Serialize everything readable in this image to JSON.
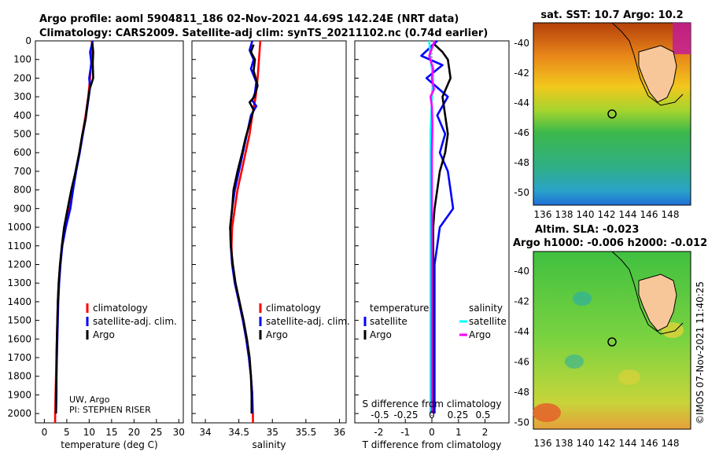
{
  "header": {
    "title_line1": "Argo profile: aoml 5904811_186 02-Nov-2021 44.69S 142.24E (NRT data)",
    "title_line2": "Climatology: CARS2009. Satellite-adj clim: synTS_20211102.nc (0.74d earlier)"
  },
  "depth_axis": {
    "ticks": [
      0,
      100,
      200,
      300,
      400,
      500,
      600,
      700,
      800,
      900,
      1000,
      1100,
      1200,
      1300,
      1400,
      1500,
      1600,
      1700,
      1800,
      1900,
      2000
    ],
    "ylim": [
      0,
      2050
    ]
  },
  "colors": {
    "climatology": "#ff0000",
    "satellite": "#0000ff",
    "argo": "#000000",
    "sat_salinity": "#00ffff",
    "argo_salinity": "#ff00ff"
  },
  "credit": {
    "line1": "UW, Argo",
    "line2": "PI: STEPHEN RISER"
  },
  "legend_profiles": {
    "climatology": "climatology",
    "satellite": "satellite-adj. clim.",
    "argo": "Argo"
  },
  "legend_diff": {
    "temperature_heading": "temperature",
    "salinity_heading": "salinity",
    "satellite": "satellite",
    "argo": "Argo"
  },
  "diff_top_axis_label": "S difference from climatology",
  "map_sst": {
    "title": "sat. SST: 10.7 Argo: 10.2",
    "lat_ticks": [
      "-40",
      "-42",
      "-44",
      "-46",
      "-48",
      "-50"
    ],
    "lon_ticks": [
      "136",
      "138",
      "140",
      "142",
      "144",
      "146",
      "148"
    ]
  },
  "map_sla": {
    "title_line1": "Altim. SLA: -0.023",
    "title_line2": "Argo h1000: -0.006 h2000: -0.012",
    "lat_ticks": [
      "-40",
      "-42",
      "-44",
      "-46",
      "-48",
      "-50"
    ]
  },
  "copyright": "©IMOS 07-Nov-2021 11:40:25",
  "chart_data": [
    {
      "type": "line",
      "xlabel": "temperature (deg C)",
      "ylabel": "",
      "xlim": [
        -2,
        31
      ],
      "ylim": [
        0,
        2050
      ],
      "x_ticks": [
        0,
        5,
        10,
        15,
        20,
        25,
        30
      ],
      "series": [
        {
          "name": "climatology",
          "color": "#ff0000",
          "points": [
            [
              10.6,
              0
            ],
            [
              10.5,
              100
            ],
            [
              10.2,
              200
            ],
            [
              9.8,
              300
            ],
            [
              9.2,
              400
            ],
            [
              8.5,
              500
            ],
            [
              7.8,
              600
            ],
            [
              7.0,
              700
            ],
            [
              6.2,
              800
            ],
            [
              5.4,
              900
            ],
            [
              4.6,
              1000
            ],
            [
              4.0,
              1100
            ],
            [
              3.5,
              1200
            ],
            [
              3.2,
              1300
            ],
            [
              3.0,
              1400
            ],
            [
              2.9,
              1500
            ],
            [
              2.8,
              1600
            ],
            [
              2.7,
              1700
            ],
            [
              2.6,
              1800
            ],
            [
              2.5,
              1900
            ],
            [
              2.4,
              2000
            ],
            [
              2.4,
              2050
            ]
          ]
        },
        {
          "name": "satellite-adj. clim.",
          "color": "#0000ff",
          "points": [
            [
              10.8,
              0
            ],
            [
              10.2,
              60
            ],
            [
              10.5,
              120
            ],
            [
              10.0,
              200
            ],
            [
              10.2,
              250
            ],
            [
              9.8,
              320
            ],
            [
              9.2,
              420
            ],
            [
              8.6,
              500
            ],
            [
              7.9,
              600
            ],
            [
              7.1,
              700
            ],
            [
              6.4,
              800
            ],
            [
              5.8,
              900
            ],
            [
              4.8,
              1000
            ],
            [
              4.0,
              1100
            ],
            [
              3.6,
              1200
            ],
            [
              3.3,
              1300
            ],
            [
              3.1,
              1400
            ],
            [
              3.0,
              1500
            ],
            [
              2.9,
              1600
            ],
            [
              2.8,
              1700
            ],
            [
              2.7,
              1800
            ],
            [
              2.7,
              1900
            ],
            [
              2.6,
              2000
            ]
          ]
        },
        {
          "name": "Argo",
          "color": "#000000",
          "points": [
            [
              10.7,
              10
            ],
            [
              10.9,
              60
            ],
            [
              10.8,
              120
            ],
            [
              10.9,
              200
            ],
            [
              10.1,
              260
            ],
            [
              9.6,
              340
            ],
            [
              9.2,
              420
            ],
            [
              8.5,
              500
            ],
            [
              7.8,
              600
            ],
            [
              6.8,
              720
            ],
            [
              6.0,
              800
            ],
            [
              5.2,
              900
            ],
            [
              4.4,
              1000
            ],
            [
              3.9,
              1100
            ],
            [
              3.5,
              1200
            ],
            [
              3.2,
              1300
            ],
            [
              3.0,
              1400
            ],
            [
              2.9,
              1500
            ],
            [
              2.8,
              1600
            ],
            [
              2.7,
              1700
            ],
            [
              2.7,
              1800
            ],
            [
              2.6,
              1900
            ],
            [
              2.6,
              2000
            ]
          ]
        }
      ]
    },
    {
      "type": "line",
      "xlabel": "salinity",
      "ylabel": "",
      "xlim": [
        33.8,
        36.1
      ],
      "ylim": [
        0,
        2050
      ],
      "x_ticks": [
        34,
        34.5,
        35,
        35.5,
        36
      ],
      "x_tick_labels": [
        "34",
        "34.5",
        "35",
        "35.5",
        "36"
      ],
      "series": [
        {
          "name": "climatology",
          "color": "#ff0000",
          "points": [
            [
              34.82,
              0
            ],
            [
              34.8,
              100
            ],
            [
              34.78,
              200
            ],
            [
              34.75,
              300
            ],
            [
              34.7,
              400
            ],
            [
              34.66,
              500
            ],
            [
              34.6,
              600
            ],
            [
              34.54,
              700
            ],
            [
              34.48,
              800
            ],
            [
              34.44,
              900
            ],
            [
              34.4,
              1000
            ],
            [
              34.39,
              1100
            ],
            [
              34.4,
              1200
            ],
            [
              34.44,
              1300
            ],
            [
              34.5,
              1400
            ],
            [
              34.56,
              1500
            ],
            [
              34.61,
              1600
            ],
            [
              34.65,
              1700
            ],
            [
              34.68,
              1800
            ],
            [
              34.7,
              1900
            ],
            [
              34.71,
              2000
            ],
            [
              34.71,
              2050
            ]
          ]
        },
        {
          "name": "satellite-adj. clim.",
          "color": "#0000ff",
          "points": [
            [
              34.7,
              0
            ],
            [
              34.66,
              50
            ],
            [
              34.72,
              100
            ],
            [
              34.68,
              150
            ],
            [
              34.76,
              220
            ],
            [
              34.74,
              280
            ],
            [
              34.7,
              320
            ],
            [
              34.76,
              350
            ],
            [
              34.68,
              400
            ],
            [
              34.62,
              500
            ],
            [
              34.56,
              600
            ],
            [
              34.5,
              700
            ],
            [
              34.44,
              800
            ],
            [
              34.4,
              900
            ],
            [
              34.37,
              1000
            ],
            [
              34.38,
              1100
            ],
            [
              34.4,
              1200
            ],
            [
              34.44,
              1300
            ],
            [
              34.5,
              1400
            ],
            [
              34.56,
              1500
            ],
            [
              34.61,
              1600
            ],
            [
              34.65,
              1700
            ],
            [
              34.68,
              1800
            ],
            [
              34.7,
              1900
            ],
            [
              34.7,
              2000
            ]
          ]
        },
        {
          "name": "Argo",
          "color": "#000000",
          "points": [
            [
              34.72,
              20
            ],
            [
              34.68,
              60
            ],
            [
              34.74,
              100
            ],
            [
              34.72,
              160
            ],
            [
              34.78,
              240
            ],
            [
              34.73,
              300
            ],
            [
              34.66,
              330
            ],
            [
              34.72,
              370
            ],
            [
              34.68,
              420
            ],
            [
              34.6,
              520
            ],
            [
              34.55,
              600
            ],
            [
              34.48,
              700
            ],
            [
              34.42,
              800
            ],
            [
              34.4,
              900
            ],
            [
              34.37,
              1000
            ],
            [
              34.38,
              1100
            ],
            [
              34.41,
              1200
            ],
            [
              34.45,
              1300
            ],
            [
              34.51,
              1400
            ],
            [
              34.57,
              1500
            ],
            [
              34.62,
              1600
            ],
            [
              34.66,
              1700
            ],
            [
              34.68,
              1800
            ],
            [
              34.69,
              1900
            ],
            [
              34.69,
              2000
            ]
          ]
        }
      ]
    },
    {
      "type": "line",
      "xlabel": "T difference from climatology",
      "ylabel": "",
      "xlim": [
        -2.9,
        2.9
      ],
      "ylim": [
        0,
        2050
      ],
      "x_ticks": [
        -2,
        -1,
        0,
        1,
        2
      ],
      "top_axis_ticks": [
        "-0.5",
        "-0.25",
        "0",
        "0.25",
        "0.5"
      ],
      "series": [
        {
          "name": "temperature satellite",
          "color": "#0000ff",
          "points": [
            [
              0.2,
              0
            ],
            [
              -0.4,
              80
            ],
            [
              0.4,
              130
            ],
            [
              -0.2,
              200
            ],
            [
              0.6,
              300
            ],
            [
              0.2,
              400
            ],
            [
              0.5,
              500
            ],
            [
              0.3,
              600
            ],
            [
              0.6,
              700
            ],
            [
              0.7,
              800
            ],
            [
              0.8,
              900
            ],
            [
              0.3,
              1000
            ],
            [
              0.2,
              1100
            ],
            [
              0.1,
              1200
            ],
            [
              0.1,
              1300
            ],
            [
              0.1,
              1400
            ],
            [
              0.1,
              1500
            ],
            [
              0.1,
              1600
            ],
            [
              0.1,
              1700
            ],
            [
              0.1,
              1800
            ],
            [
              0.1,
              1900
            ],
            [
              0.1,
              2000
            ]
          ]
        },
        {
          "name": "temperature Argo",
          "color": "#000000",
          "points": [
            [
              0.1,
              20
            ],
            [
              0.4,
              60
            ],
            [
              0.6,
              100
            ],
            [
              0.7,
              200
            ],
            [
              0.4,
              300
            ],
            [
              0.5,
              400
            ],
            [
              0.6,
              500
            ],
            [
              0.5,
              600
            ],
            [
              0.3,
              700
            ],
            [
              0.2,
              800
            ],
            [
              0.1,
              900
            ],
            [
              0.05,
              1000
            ],
            [
              0.05,
              1100
            ],
            [
              0.05,
              1200
            ],
            [
              0.05,
              1300
            ],
            [
              0.05,
              1400
            ],
            [
              0.05,
              1500
            ],
            [
              0.05,
              1600
            ],
            [
              0.05,
              1700
            ],
            [
              0.05,
              1800
            ],
            [
              0.05,
              1900
            ],
            [
              0.05,
              2000
            ]
          ]
        },
        {
          "name": "salinity satellite",
          "color": "#00ffff",
          "points": [
            [
              -0.1,
              0
            ],
            [
              -0.05,
              100
            ],
            [
              0.05,
              200
            ],
            [
              0.0,
              300
            ],
            [
              -0.05,
              500
            ],
            [
              -0.05,
              800
            ],
            [
              -0.05,
              1000
            ],
            [
              -0.05,
              1200
            ],
            [
              -0.05,
              1400
            ],
            [
              -0.05,
              1600
            ],
            [
              -0.05,
              1800
            ],
            [
              -0.05,
              2000
            ]
          ]
        },
        {
          "name": "salinity Argo",
          "color": "#ff00ff",
          "points": [
            [
              0.1,
              0
            ],
            [
              -0.1,
              80
            ],
            [
              0.05,
              150
            ],
            [
              0.0,
              200
            ],
            [
              0.08,
              260
            ],
            [
              -0.05,
              300
            ],
            [
              0.0,
              350
            ],
            [
              0.02,
              450
            ],
            [
              0.0,
              600
            ],
            [
              0.0,
              800
            ],
            [
              0.0,
              1000
            ],
            [
              0.0,
              1200
            ],
            [
              0.0,
              1400
            ],
            [
              0.0,
              1600
            ],
            [
              0.0,
              1800
            ],
            [
              0.0,
              2000
            ]
          ]
        }
      ]
    }
  ]
}
